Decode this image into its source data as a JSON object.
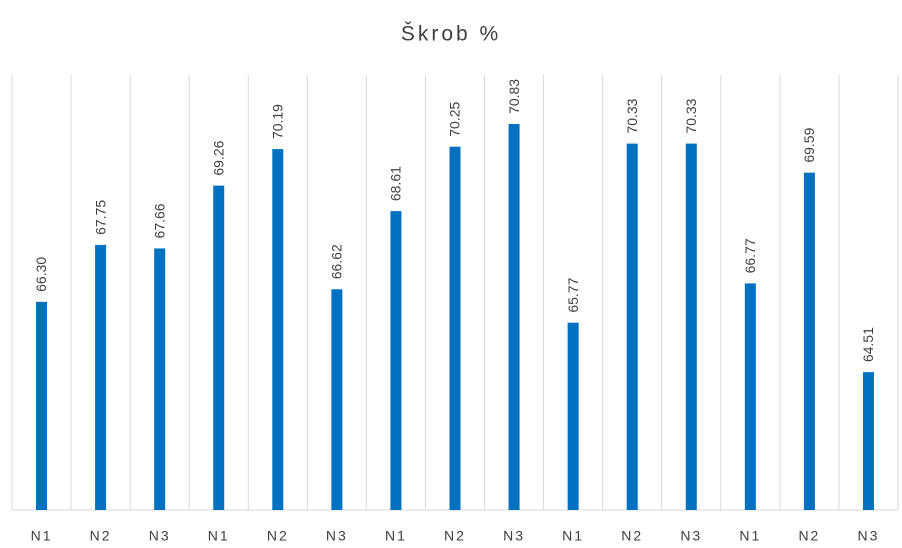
{
  "chart_data": {
    "type": "bar",
    "title": "Škrob %",
    "categories": [
      "N1",
      "N2",
      "N3",
      "N1",
      "N2",
      "N3",
      "N1",
      "N2",
      "N3",
      "N1",
      "N2",
      "N3",
      "N1",
      "N2",
      "N3"
    ],
    "values": [
      66.3,
      67.75,
      67.66,
      69.26,
      70.19,
      66.62,
      68.61,
      70.25,
      70.83,
      65.77,
      70.33,
      70.33,
      66.77,
      69.59,
      64.51
    ],
    "value_labels": [
      "66.30",
      "67.75",
      "67.66",
      "69.26",
      "70.19",
      "66.62",
      "68.61",
      "70.25",
      "70.83",
      "65.77",
      "70.33",
      "70.33",
      "66.77",
      "69.59",
      "64.51"
    ],
    "color": "#0070c0",
    "ylim": [
      61,
      72
    ]
  }
}
